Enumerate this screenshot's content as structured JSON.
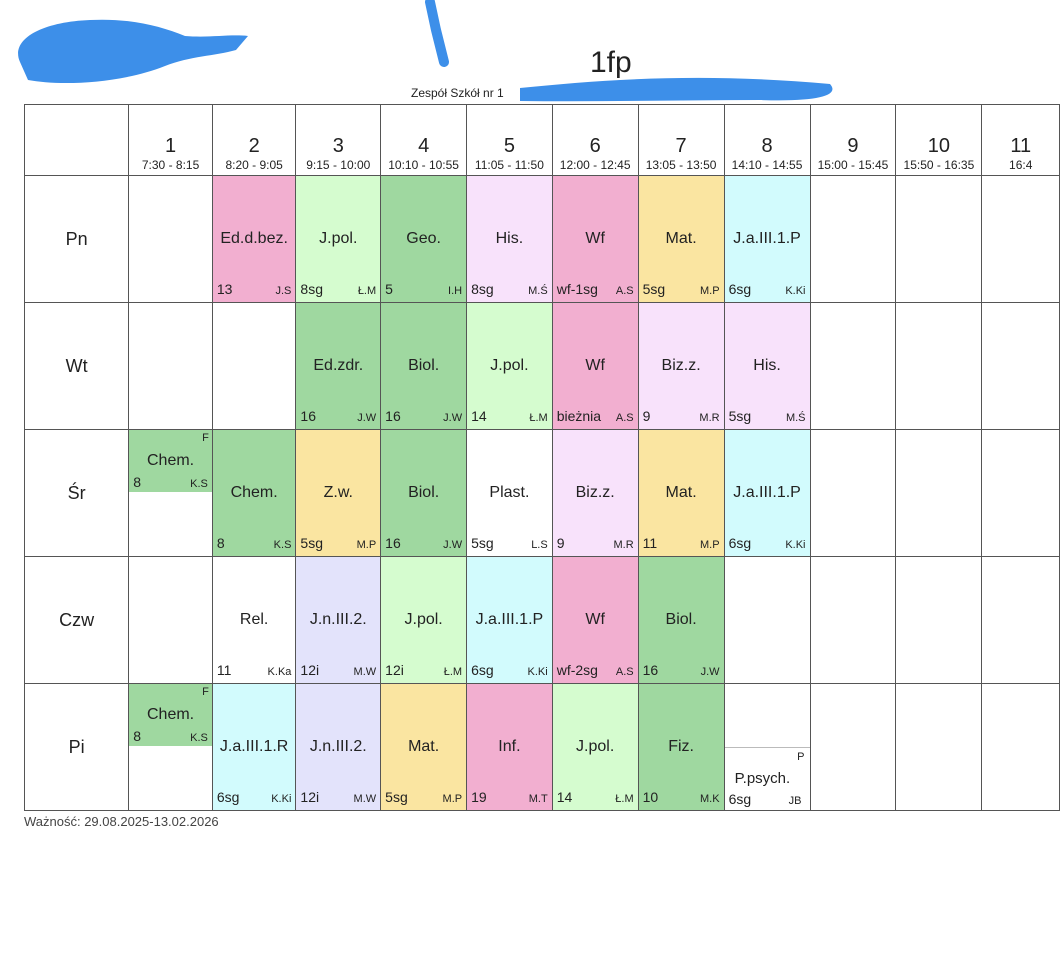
{
  "header": {
    "title": "1fp",
    "school_line": "Zespół Szkół nr 1"
  },
  "periods": [
    {
      "num": "1",
      "time": "7:30 - 8:15"
    },
    {
      "num": "2",
      "time": "8:20 - 9:05"
    },
    {
      "num": "3",
      "time": "9:15 - 10:00"
    },
    {
      "num": "4",
      "time": "10:10 - 10:55"
    },
    {
      "num": "5",
      "time": "11:05 - 11:50"
    },
    {
      "num": "6",
      "time": "12:00 - 12:45"
    },
    {
      "num": "7",
      "time": "13:05 - 13:50"
    },
    {
      "num": "8",
      "time": "14:10 - 14:55"
    },
    {
      "num": "9",
      "time": "15:00 - 15:45"
    },
    {
      "num": "10",
      "time": "15:50 - 16:35"
    },
    {
      "num": "11",
      "time": "16:4"
    }
  ],
  "days": [
    {
      "label": "Pn",
      "cells": [
        null,
        {
          "subject": "Ed.d.bez.",
          "room": "13",
          "teacher": "J.S",
          "color": "#f2afd0"
        },
        {
          "subject": "J.pol.",
          "room": "8sg",
          "teacher": "Ł.M",
          "color": "#d5fccf"
        },
        {
          "subject": "Geo.",
          "room": "5",
          "teacher": "I.H",
          "color": "#9fd8a0"
        },
        {
          "subject": "His.",
          "room": "8sg",
          "teacher": "M.Ś",
          "color": "#f8e2fb"
        },
        {
          "subject": "Wf",
          "room": "wf-1sg",
          "teacher": "A.S",
          "color": "#f2afd0"
        },
        {
          "subject": "Mat.",
          "room": "5sg",
          "teacher": "M.P",
          "color": "#fae5a1"
        },
        {
          "subject": "J.a.III.1.P",
          "room": "6sg",
          "teacher": "K.Ki",
          "color": "#d2fbfd"
        },
        null,
        null,
        null
      ]
    },
    {
      "label": "Wt",
      "cells": [
        null,
        null,
        {
          "subject": "Ed.zdr.",
          "room": "16",
          "teacher": "J.W",
          "color": "#9fd8a0"
        },
        {
          "subject": "Biol.",
          "room": "16",
          "teacher": "J.W",
          "color": "#9fd8a0"
        },
        {
          "subject": "J.pol.",
          "room": "14",
          "teacher": "Ł.M",
          "color": "#d5fccf"
        },
        {
          "subject": "Wf",
          "room": "bieżnia",
          "teacher": "A.S",
          "color": "#f2afd0"
        },
        {
          "subject": "Biz.z.",
          "room": "9",
          "teacher": "M.R",
          "color": "#f8e2fb"
        },
        {
          "subject": "His.",
          "room": "5sg",
          "teacher": "M.Ś",
          "color": "#f8e2fb"
        },
        null,
        null,
        null
      ]
    },
    {
      "label": "Śr",
      "cells": [
        {
          "split": "top",
          "flag": "F",
          "subject": "Chem.",
          "room": "8",
          "teacher": "K.S",
          "color": "#9fd8a0"
        },
        {
          "subject": "Chem.",
          "room": "8",
          "teacher": "K.S",
          "color": "#9fd8a0"
        },
        {
          "subject": "Z.w.",
          "room": "5sg",
          "teacher": "M.P",
          "color": "#fae5a1"
        },
        {
          "subject": "Biol.",
          "room": "16",
          "teacher": "J.W",
          "color": "#9fd8a0"
        },
        {
          "subject": "Plast.",
          "room": "5sg",
          "teacher": "L.S",
          "color": "#ffffff"
        },
        {
          "subject": "Biz.z.",
          "room": "9",
          "teacher": "M.R",
          "color": "#f8e2fb"
        },
        {
          "subject": "Mat.",
          "room": "11",
          "teacher": "M.P",
          "color": "#fae5a1"
        },
        {
          "subject": "J.a.III.1.P",
          "room": "6sg",
          "teacher": "K.Ki",
          "color": "#d2fbfd"
        },
        null,
        null,
        null
      ]
    },
    {
      "label": "Czw",
      "cells": [
        null,
        {
          "subject": "Rel.",
          "room": "11",
          "teacher": "K.Ka",
          "color": "#ffffff"
        },
        {
          "subject": "J.n.III.2.",
          "room": "12i",
          "teacher": "M.W",
          "color": "#e3e3fb"
        },
        {
          "subject": "J.pol.",
          "room": "12i",
          "teacher": "Ł.M",
          "color": "#d5fccf"
        },
        {
          "subject": "J.a.III.1.P",
          "room": "6sg",
          "teacher": "K.Ki",
          "color": "#d2fbfd"
        },
        {
          "subject": "Wf",
          "room": "wf-2sg",
          "teacher": "A.S",
          "color": "#f2afd0"
        },
        {
          "subject": "Biol.",
          "room": "16",
          "teacher": "J.W",
          "color": "#9fd8a0"
        },
        null,
        null,
        null,
        null
      ]
    },
    {
      "label": "Pi",
      "cells": [
        {
          "split": "top",
          "flag": "F",
          "subject": "Chem.",
          "room": "8",
          "teacher": "K.S",
          "color": "#9fd8a0"
        },
        {
          "subject": "J.a.III.1.R",
          "room": "6sg",
          "teacher": "K.Ki",
          "color": "#d2fbfd"
        },
        {
          "subject": "J.n.III.2.",
          "room": "12i",
          "teacher": "M.W",
          "color": "#e3e3fb"
        },
        {
          "subject": "Mat.",
          "room": "5sg",
          "teacher": "M.P",
          "color": "#fae5a1"
        },
        {
          "subject": "Inf.",
          "room": "19",
          "teacher": "M.T",
          "color": "#f2afd0"
        },
        {
          "subject": "J.pol.",
          "room": "14",
          "teacher": "Ł.M",
          "color": "#d5fccf"
        },
        {
          "subject": "Fiz.",
          "room": "10",
          "teacher": "M.K",
          "color": "#9fd8a0"
        },
        {
          "split": "bottom",
          "flag": "P",
          "subject": "P.psych.",
          "room": "6sg",
          "teacher": "JB",
          "color": "#ffffff"
        },
        null,
        null,
        null
      ]
    }
  ],
  "footer": {
    "validity": "Ważność: 29.08.2025-13.02.2026"
  },
  "colors": {
    "scribble": "#3d8fe9",
    "grid": "#555555"
  }
}
